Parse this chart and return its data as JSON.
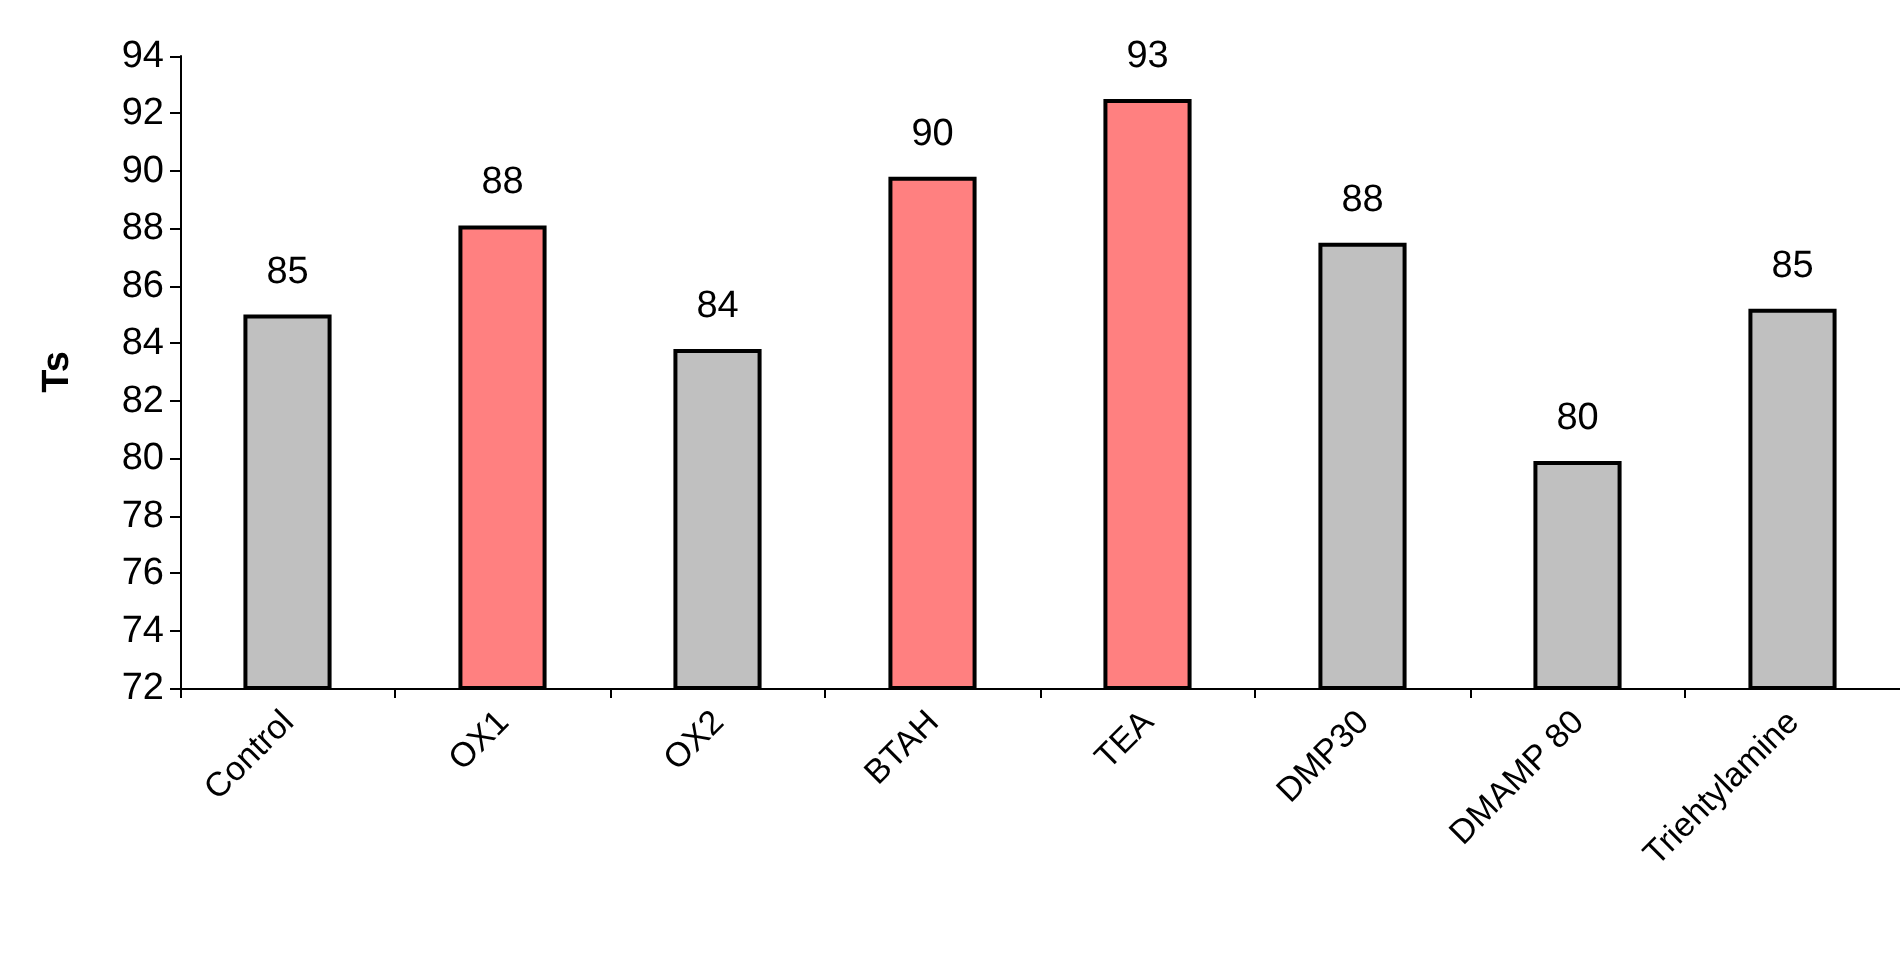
{
  "chart_data": {
    "type": "bar",
    "ylabel": "Ts",
    "categories": [
      "Control",
      "OX1",
      "OX2",
      "BTAH",
      "TEA",
      "DMP30",
      "DMAMP 80",
      "Triehtylamine"
    ],
    "values": [
      85.0,
      88.1,
      83.8,
      89.8,
      92.5,
      87.5,
      79.9,
      85.2
    ],
    "value_labels": [
      "85",
      "88",
      "84",
      "90",
      "93",
      "88",
      "80",
      "85"
    ],
    "colors": [
      "#c0c0c0",
      "#ff8080",
      "#c0c0c0",
      "#ff8080",
      "#ff8080",
      "#c0c0c0",
      "#c0c0c0",
      "#c0c0c0"
    ],
    "ylim": [
      72,
      94
    ],
    "yticks": [
      72,
      74,
      76,
      78,
      80,
      82,
      84,
      86,
      88,
      90,
      92,
      94
    ],
    "grid": false
  }
}
